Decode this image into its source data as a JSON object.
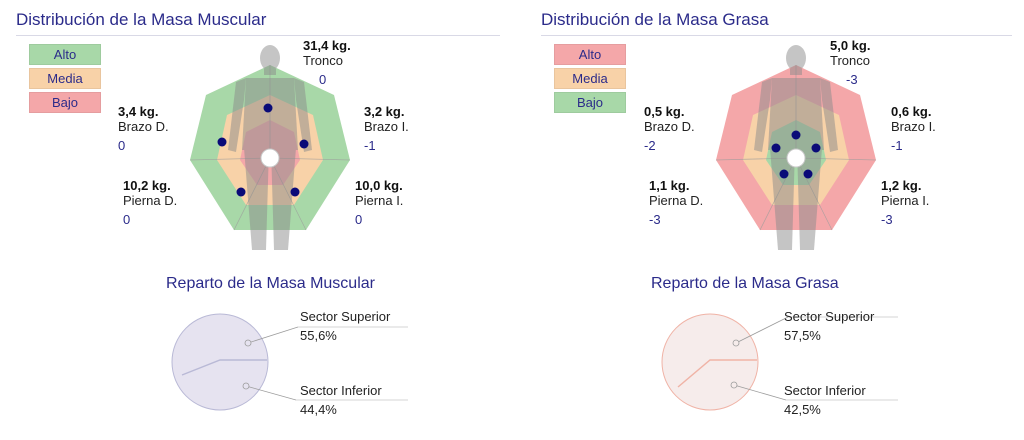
{
  "muscle": {
    "title": "Distribución de la Masa Muscular",
    "legend": [
      "Alto",
      "Media",
      "Bajo"
    ],
    "segments": [
      {
        "key": "tronco",
        "weight": "31,4 kg.",
        "name": "Tronco",
        "delta": "0"
      },
      {
        "key": "brazo_d",
        "weight": "3,4 kg.",
        "name": "Brazo D.",
        "delta": "0"
      },
      {
        "key": "brazo_i",
        "weight": "3,2 kg.",
        "name": "Brazo I.",
        "delta": "-1"
      },
      {
        "key": "pierna_d",
        "weight": "10,2 kg.",
        "name": "Pierna D.",
        "delta": "0"
      },
      {
        "key": "pierna_i",
        "weight": "10,0 kg.",
        "name": "Pierna I.",
        "delta": "0"
      }
    ],
    "reparto_title": "Reparto de la Masa Muscular",
    "pie": [
      {
        "label": "Sector Superior",
        "value": "55,6%"
      },
      {
        "label": "Sector Inferior",
        "value": "44,4%"
      }
    ]
  },
  "fat": {
    "title": "Distribución de la Masa Grasa",
    "legend": [
      "Alto",
      "Media",
      "Bajo"
    ],
    "segments": [
      {
        "key": "tronco",
        "weight": "5,0 kg.",
        "name": "Tronco",
        "delta": "-3"
      },
      {
        "key": "brazo_d",
        "weight": "0,5 kg.",
        "name": "Brazo D.",
        "delta": "-2"
      },
      {
        "key": "brazo_i",
        "weight": "0,6 kg.",
        "name": "Brazo I.",
        "delta": "-1"
      },
      {
        "key": "pierna_d",
        "weight": "1,1 kg.",
        "name": "Pierna D.",
        "delta": "-3"
      },
      {
        "key": "pierna_i",
        "weight": "1,2 kg.",
        "name": "Pierna I.",
        "delta": "-3"
      }
    ],
    "reparto_title": "Reparto de la Masa Grasa",
    "pie": [
      {
        "label": "Sector Superior",
        "value": "57,5%"
      },
      {
        "label": "Sector Inferior",
        "value": "42,5%"
      }
    ]
  },
  "colors": {
    "green": "#a8d8a8",
    "orange": "#f8d2a8",
    "red": "#f4a7a9",
    "title": "#2b2b8a",
    "dot": "#0a0a78"
  }
}
